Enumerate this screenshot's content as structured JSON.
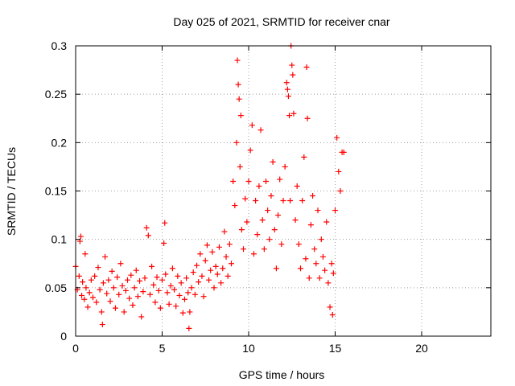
{
  "chart_data": {
    "type": "scatter",
    "title": "Day 025 of 2021, SRMTID for receiver cnar",
    "xlabel": "GPS time / hours",
    "ylabel": "SRMTID / TECUs",
    "xlim": [
      0,
      24
    ],
    "ylim": [
      0,
      0.3
    ],
    "xticks": [
      0,
      5,
      10,
      15,
      20
    ],
    "xtick_labels": [
      "0",
      "5",
      "10",
      "15",
      "20"
    ],
    "yticks": [
      0,
      0.05,
      0.1,
      0.15,
      0.2,
      0.25,
      0.3
    ],
    "ytick_labels": [
      "0",
      "0.05",
      "0.1",
      "0.15",
      "0.2",
      "0.25",
      "0.3"
    ],
    "grid": true,
    "marker": "+",
    "color": "#ff0000",
    "series": [
      {
        "name": "SRMTID",
        "points": [
          [
            0.0,
            0.072
          ],
          [
            0.1,
            0.048
          ],
          [
            0.2,
            0.062
          ],
          [
            0.25,
            0.098
          ],
          [
            0.3,
            0.103
          ],
          [
            0.35,
            0.042
          ],
          [
            0.4,
            0.056
          ],
          [
            0.5,
            0.038
          ],
          [
            0.55,
            0.085
          ],
          [
            0.6,
            0.05
          ],
          [
            0.7,
            0.03
          ],
          [
            0.8,
            0.045
          ],
          [
            0.9,
            0.058
          ],
          [
            1.0,
            0.04
          ],
          [
            1.1,
            0.062
          ],
          [
            1.2,
            0.035
          ],
          [
            1.3,
            0.071
          ],
          [
            1.4,
            0.048
          ],
          [
            1.5,
            0.025
          ],
          [
            1.55,
            0.012
          ],
          [
            1.6,
            0.055
          ],
          [
            1.7,
            0.082
          ],
          [
            1.8,
            0.044
          ],
          [
            1.9,
            0.058
          ],
          [
            2.0,
            0.036
          ],
          [
            2.1,
            0.067
          ],
          [
            2.2,
            0.05
          ],
          [
            2.3,
            0.029
          ],
          [
            2.4,
            0.061
          ],
          [
            2.5,
            0.043
          ],
          [
            2.6,
            0.075
          ],
          [
            2.7,
            0.052
          ],
          [
            2.8,
            0.025
          ],
          [
            2.9,
            0.047
          ],
          [
            3.0,
            0.058
          ],
          [
            3.1,
            0.039
          ],
          [
            3.2,
            0.063
          ],
          [
            3.3,
            0.032
          ],
          [
            3.4,
            0.05
          ],
          [
            3.5,
            0.068
          ],
          [
            3.6,
            0.041
          ],
          [
            3.7,
            0.057
          ],
          [
            3.8,
            0.02
          ],
          [
            3.9,
            0.046
          ],
          [
            4.0,
            0.06
          ],
          [
            4.1,
            0.112
          ],
          [
            4.2,
            0.104
          ],
          [
            4.3,
            0.043
          ],
          [
            4.4,
            0.072
          ],
          [
            4.5,
            0.053
          ],
          [
            4.6,
            0.035
          ],
          [
            4.7,
            0.061
          ],
          [
            4.8,
            0.047
          ],
          [
            4.9,
            0.029
          ],
          [
            5.0,
            0.058
          ],
          [
            5.1,
            0.096
          ],
          [
            5.15,
            0.117
          ],
          [
            5.2,
            0.064
          ],
          [
            5.3,
            0.045
          ],
          [
            5.4,
            0.033
          ],
          [
            5.5,
            0.052
          ],
          [
            5.6,
            0.07
          ],
          [
            5.7,
            0.048
          ],
          [
            5.8,
            0.031
          ],
          [
            5.9,
            0.062
          ],
          [
            6.0,
            0.042
          ],
          [
            6.1,
            0.055
          ],
          [
            6.2,
            0.024
          ],
          [
            6.3,
            0.038
          ],
          [
            6.4,
            0.06
          ],
          [
            6.5,
            0.045
          ],
          [
            6.55,
            0.008
          ],
          [
            6.6,
            0.025
          ],
          [
            6.7,
            0.05
          ],
          [
            6.8,
            0.066
          ],
          [
            6.9,
            0.043
          ],
          [
            7.0,
            0.073
          ],
          [
            7.1,
            0.056
          ],
          [
            7.2,
            0.085
          ],
          [
            7.3,
            0.062
          ],
          [
            7.4,
            0.041
          ],
          [
            7.5,
            0.078
          ],
          [
            7.6,
            0.094
          ],
          [
            7.7,
            0.058
          ],
          [
            7.8,
            0.068
          ],
          [
            7.9,
            0.087
          ],
          [
            8.0,
            0.05
          ],
          [
            8.1,
            0.072
          ],
          [
            8.2,
            0.064
          ],
          [
            8.3,
            0.092
          ],
          [
            8.4,
            0.055
          ],
          [
            8.5,
            0.07
          ],
          [
            8.6,
            0.108
          ],
          [
            8.7,
            0.082
          ],
          [
            8.8,
            0.062
          ],
          [
            8.9,
            0.095
          ],
          [
            9.0,
            0.075
          ],
          [
            9.1,
            0.16
          ],
          [
            9.2,
            0.135
          ],
          [
            9.3,
            0.2
          ],
          [
            9.35,
            0.285
          ],
          [
            9.4,
            0.26
          ],
          [
            9.45,
            0.245
          ],
          [
            9.5,
            0.175
          ],
          [
            9.55,
            0.228
          ],
          [
            9.6,
            0.11
          ],
          [
            9.7,
            0.09
          ],
          [
            9.8,
            0.142
          ],
          [
            9.9,
            0.118
          ],
          [
            10.0,
            0.16
          ],
          [
            10.1,
            0.192
          ],
          [
            10.2,
            0.218
          ],
          [
            10.3,
            0.085
          ],
          [
            10.4,
            0.14
          ],
          [
            10.5,
            0.105
          ],
          [
            10.6,
            0.155
          ],
          [
            10.7,
            0.213
          ],
          [
            10.8,
            0.12
          ],
          [
            10.9,
            0.09
          ],
          [
            11.0,
            0.16
          ],
          [
            11.1,
            0.13
          ],
          [
            11.2,
            0.1
          ],
          [
            11.3,
            0.145
          ],
          [
            11.4,
            0.18
          ],
          [
            11.5,
            0.11
          ],
          [
            11.6,
            0.07
          ],
          [
            11.7,
            0.125
          ],
          [
            11.8,
            0.162
          ],
          [
            11.9,
            0.095
          ],
          [
            12.0,
            0.14
          ],
          [
            12.1,
            0.175
          ],
          [
            12.2,
            0.262
          ],
          [
            12.25,
            0.255
          ],
          [
            12.3,
            0.248
          ],
          [
            12.35,
            0.228
          ],
          [
            12.4,
            0.14
          ],
          [
            12.45,
            0.3
          ],
          [
            12.5,
            0.28
          ],
          [
            12.55,
            0.27
          ],
          [
            12.6,
            0.23
          ],
          [
            12.7,
            0.12
          ],
          [
            12.8,
            0.155
          ],
          [
            12.9,
            0.095
          ],
          [
            13.0,
            0.07
          ],
          [
            13.1,
            0.14
          ],
          [
            13.2,
            0.185
          ],
          [
            13.3,
            0.08
          ],
          [
            13.35,
            0.278
          ],
          [
            13.4,
            0.225
          ],
          [
            13.5,
            0.06
          ],
          [
            13.6,
            0.115
          ],
          [
            13.7,
            0.145
          ],
          [
            13.8,
            0.09
          ],
          [
            13.9,
            0.075
          ],
          [
            14.0,
            0.13
          ],
          [
            14.1,
            0.06
          ],
          [
            14.2,
            0.1
          ],
          [
            14.3,
            0.082
          ],
          [
            14.4,
            0.068
          ],
          [
            14.5,
            0.118
          ],
          [
            14.6,
            0.055
          ],
          [
            14.7,
            0.03
          ],
          [
            14.8,
            0.075
          ],
          [
            14.85,
            0.022
          ],
          [
            14.9,
            0.065
          ],
          [
            15.0,
            0.13
          ],
          [
            15.1,
            0.205
          ],
          [
            15.2,
            0.17
          ],
          [
            15.3,
            0.15
          ],
          [
            15.4,
            0.19
          ],
          [
            15.5,
            0.19
          ]
        ]
      }
    ]
  }
}
